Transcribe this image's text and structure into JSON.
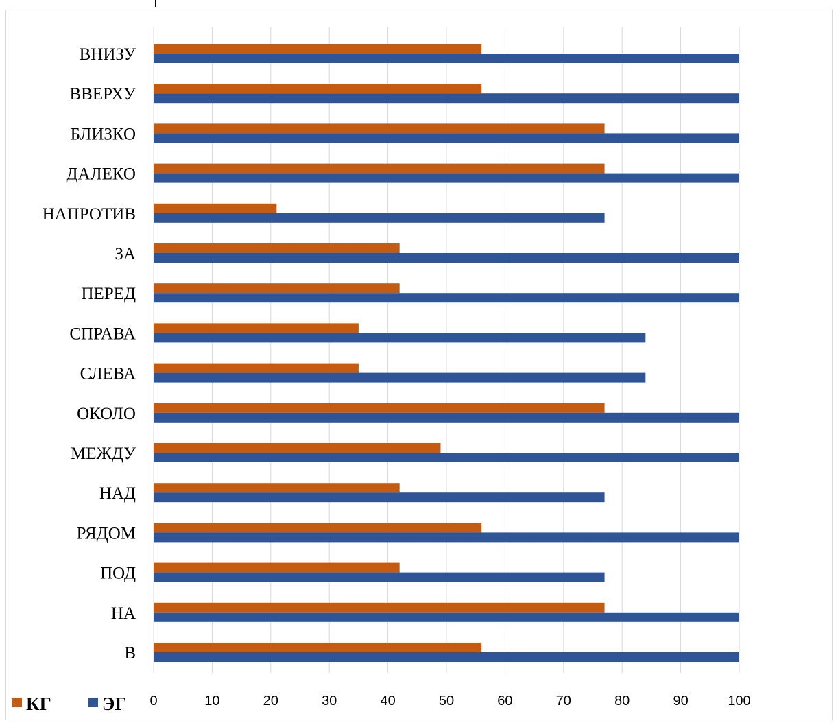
{
  "chart_data": {
    "type": "bar",
    "orientation": "horizontal",
    "categories": [
      "ВНИЗУ",
      "ВВЕРХУ",
      "БЛИЗКО",
      "ДАЛЕКО",
      "НАПРОТИВ",
      "ЗА",
      "ПЕРЕД",
      "СПРАВА",
      "СЛЕВА",
      "ОКОЛО",
      "МЕЖДУ",
      "НАД",
      "РЯДОМ",
      "ПОД",
      "НА",
      "В"
    ],
    "series": [
      {
        "name": "КГ",
        "color": "#c55a11",
        "values": [
          56,
          56,
          77,
          77,
          21,
          42,
          42,
          35,
          35,
          77,
          49,
          42,
          56,
          42,
          77,
          56
        ]
      },
      {
        "name": "ЭГ",
        "color": "#2f5597",
        "values": [
          100,
          100,
          100,
          100,
          77,
          100,
          100,
          84,
          84,
          100,
          100,
          77,
          100,
          77,
          100,
          100
        ]
      }
    ],
    "xlim": [
      0,
      100
    ],
    "xticks": [
      "0",
      "10",
      "20",
      "30",
      "40",
      "50",
      "60",
      "70",
      "80",
      "90",
      "100"
    ],
    "grid": true,
    "legend_position": "bottom-left",
    "title": "",
    "xlabel": "",
    "ylabel": ""
  }
}
